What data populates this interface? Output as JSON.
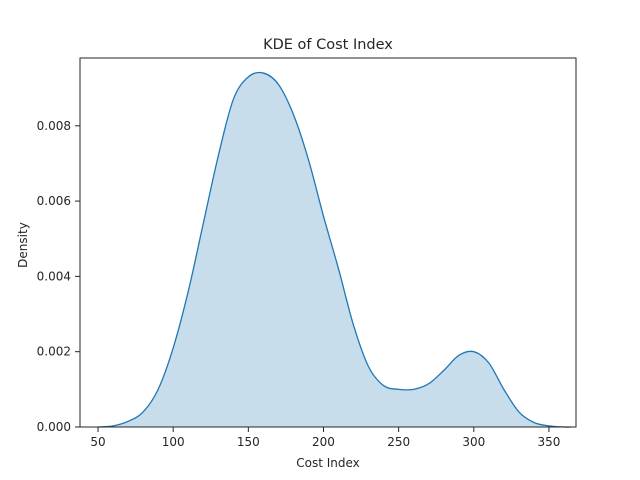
{
  "chart_data": {
    "type": "area",
    "title": "KDE of Cost Index",
    "xlabel": "Cost Index",
    "ylabel": "Density",
    "xlim": [
      38,
      368
    ],
    "ylim": [
      0,
      0.0098
    ],
    "xticks": [
      50,
      100,
      150,
      200,
      250,
      300,
      350
    ],
    "xtick_labels": [
      "50",
      "100",
      "150",
      "200",
      "250",
      "300",
      "350"
    ],
    "yticks": [
      0,
      0.002,
      0.004,
      0.006,
      0.008
    ],
    "ytick_labels": [
      "0.000",
      "0.002",
      "0.004",
      "0.006",
      "0.008"
    ],
    "grid": false,
    "legend": "none",
    "colors": {
      "line": "#1f77b4",
      "fill": "#1f77b4",
      "fill_opacity": 0.25,
      "axes": "#262626"
    },
    "series": [
      {
        "x": [
          50,
          60,
          70,
          80,
          90,
          100,
          110,
          120,
          130,
          140,
          150,
          160,
          170,
          180,
          190,
          200,
          210,
          220,
          230,
          240,
          250,
          260,
          270,
          280,
          290,
          300,
          310,
          320,
          330,
          340,
          350,
          360,
          365
        ],
        "y": [
          0.0,
          3e-05,
          0.00015,
          0.0004,
          0.001,
          0.0021,
          0.0036,
          0.0054,
          0.0072,
          0.0087,
          0.0093,
          0.0094,
          0.0091,
          0.0083,
          0.0071,
          0.0056,
          0.0042,
          0.0027,
          0.0016,
          0.0011,
          0.001,
          0.001,
          0.00115,
          0.0015,
          0.0019,
          0.002,
          0.0017,
          0.001,
          0.0004,
          0.00012,
          3e-05,
          0.0,
          0.0
        ]
      }
    ]
  }
}
